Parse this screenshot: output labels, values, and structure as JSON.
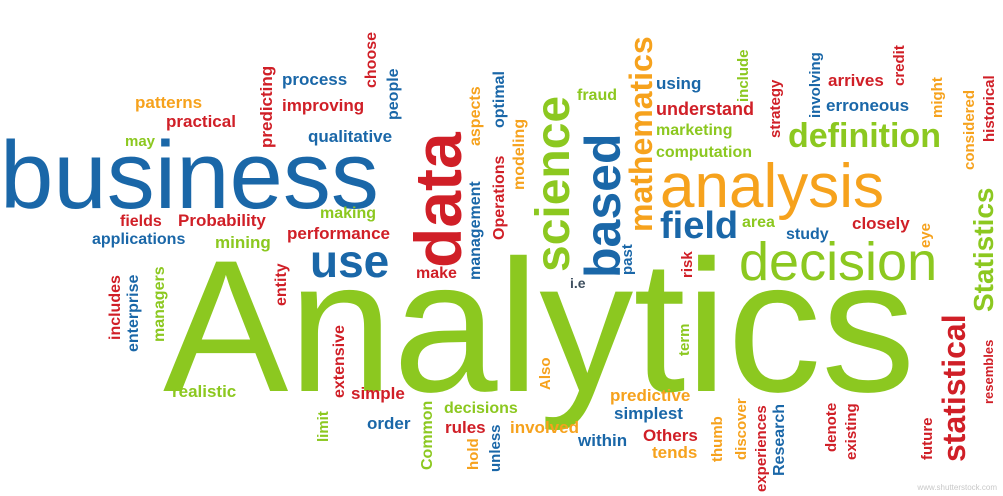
{
  "words": {
    "analytics": "Analytics",
    "business": "business",
    "data": "data",
    "science": "science",
    "based": "based",
    "mathematics": "mathematics",
    "analysis": "analysis",
    "decision": "decision",
    "field": "field",
    "definition": "definition",
    "use": "use",
    "statistical": "statistical",
    "statistics": "Statistics",
    "process": "process",
    "predicting": "predicting",
    "choose": "choose",
    "people": "people",
    "improving": "improving",
    "patterns": "patterns",
    "practical": "practical",
    "may": "may",
    "qualitative": "qualitative",
    "aspects": "aspects",
    "optimal": "optimal",
    "modeling": "modeling",
    "operations": "Operations",
    "management": "management",
    "fraud": "fraud",
    "using": "using",
    "understand": "understand",
    "marketing": "marketing",
    "computation": "computation",
    "include": "include",
    "strategy": "strategy",
    "involving": "involving",
    "arrives": "arrives",
    "credit": "credit",
    "erroneous": "erroneous",
    "might": "might",
    "considered": "considered",
    "historical": "historical",
    "fields": "fields",
    "probability": "Probability",
    "making": "making",
    "applications": "applications",
    "performance": "performance",
    "mining": "mining",
    "make": "make",
    "area": "area",
    "study": "study",
    "closely": "closely",
    "eye": "eye",
    "past": "past",
    "risk": "risk",
    "ie": "i.e",
    "includes": "includes",
    "enterprise": "enterprise",
    "managers": "managers",
    "entity": "entity",
    "extensive": "extensive",
    "realistic": "realistic",
    "simple": "simple",
    "limit": "limit",
    "order": "order",
    "common": "Common",
    "hold": "hold",
    "rules": "rules",
    "unless": "unless",
    "decisions": "decisions",
    "involved": "involved",
    "also": "Also",
    "predictive": "predictive",
    "simplest": "simplest",
    "within": "within",
    "others": "Others",
    "tends": "tends",
    "term": "term",
    "thumb": "thumb",
    "discover": "discover",
    "experiences": "experiences",
    "research": "Research",
    "denote": "denote",
    "existing": "existing",
    "future": "future",
    "resembles": "resembles"
  },
  "watermark": "www.shutterstock.com",
  "colors": {
    "blue": "#1a67a8",
    "green": "#8cc820",
    "orange": "#f6a21d",
    "red": "#d01f27",
    "background": "#ffffff"
  }
}
